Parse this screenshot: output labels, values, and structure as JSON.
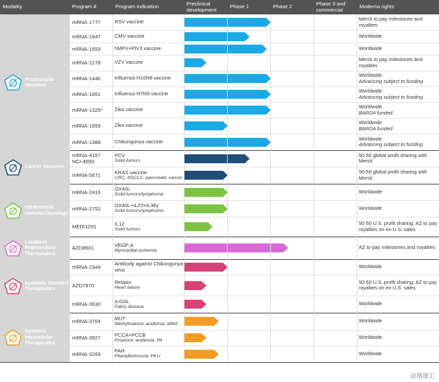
{
  "headers": {
    "modality": "Modality",
    "program": "Program #",
    "indication": "Program indication",
    "preclinical": "Preclinical development",
    "phase1": "Phase 1",
    "phase2": "Phase 2",
    "phase3": "Phase 3 and commercial",
    "rights": "Moderna rights"
  },
  "colors": {
    "header_bg": "#545454",
    "modality_bg": "#d6d6d6",
    "prophylactic": "#1ba9e4",
    "cancer": "#1f4e79",
    "intratumoral": "#7dc242",
    "regenerative": "#d86ad8",
    "secreted": "#d64377",
    "intracellular": "#f29d21"
  },
  "groups": [
    {
      "key": "prophylactic",
      "name": "Prophylactic Vaccines",
      "icon": "prophylactic-vaccine-icon",
      "rows": [
        {
          "program": "mRNA-1777",
          "indication": "RSV vaccine",
          "sub": "",
          "stage": 2.0,
          "rights": "Merck to pay milestones and royalties",
          "rights_sub": ""
        },
        {
          "program": "mRNA-1647",
          "indication": "CMV vaccine",
          "sub": "",
          "stage": 1.5,
          "rights": "Worldwide",
          "rights_sub": ""
        },
        {
          "program": "mRNA-1653",
          "indication": "hMPV+PIV3 vaccine",
          "sub": "",
          "stage": 1.9,
          "rights": "Worldwide",
          "rights_sub": ""
        },
        {
          "program": "mRNA-1278",
          "indication": "VZV vaccine",
          "sub": "",
          "stage": 0.5,
          "rights": "Merck to pay milestones and royalties",
          "rights_sub": ""
        },
        {
          "program": "mRNA-1440",
          "indication": "Influenza H10N8 vaccine",
          "sub": "",
          "stage": 2.0,
          "rights": "Worldwide",
          "rights_sub": "Advancing subject to funding"
        },
        {
          "program": "mRNA-1851",
          "indication": "Influenza H7N9 vaccine",
          "sub": "",
          "stage": 2.0,
          "rights": "Worldwide",
          "rights_sub": "Advancing subject to funding"
        },
        {
          "program": "mRNA-1325*",
          "indication": "Zika vaccine",
          "sub": "",
          "stage": 2.0,
          "rights": "Worldwide",
          "rights_sub": "BARDA funded"
        },
        {
          "program": "mRNA-1893",
          "indication": "Zika vaccine",
          "sub": "",
          "stage": 1.0,
          "rights": "Worldwide",
          "rights_sub": "BARDA funded"
        },
        {
          "program": "mRNA-1388",
          "indication": "Chikungunya vaccine",
          "sub": "",
          "stage": 2.0,
          "rights": "Worldwide",
          "rights_sub": "Advancing subject to funding"
        }
      ]
    },
    {
      "key": "cancer",
      "name": "Cancer Vaccines",
      "icon": "cancer-vaccine-icon",
      "rows": [
        {
          "program": "mRNA-4157\nNCI-4650",
          "indication": "PCV",
          "sub": "Solid tumors",
          "stage": 1.5,
          "rights": "50-50 global profit sharing with Merck",
          "rights_sub": ""
        },
        {
          "program": "mRNA-5671",
          "indication": "KRAS vaccine",
          "sub": "CRC, NSCLC, pancreatic cancer",
          "stage": 1.0,
          "rights": "50-50 global profit sharing with Merck",
          "rights_sub": ""
        }
      ]
    },
    {
      "key": "intratumoral",
      "name": "Intratumoral Immuno-Oncology",
      "icon": "intratumoral-icon",
      "rows": [
        {
          "program": "mRNA-2416",
          "indication": "OX40L",
          "sub": "Solid tumors/lymphoma",
          "stage": 1.0,
          "rights": "Worldwide",
          "rights_sub": ""
        },
        {
          "program": "mRNA-2752",
          "indication": "OX40L+IL23+IL36γ",
          "sub": "Solid tumors/lymphoma",
          "stage": 1.0,
          "rights": "Worldwide",
          "rights_sub": ""
        },
        {
          "program": "MEDI1191",
          "indication": "IL12",
          "sub": "Solid tumors",
          "stage": 0.65,
          "rights": "50-50 U.S. profit sharing; AZ to pay royalties on ex-U.S. sales",
          "rights_sub": ""
        }
      ]
    },
    {
      "key": "regenerative",
      "name": "Localized Regenerative Therapeutics",
      "icon": "regenerative-icon",
      "rows": [
        {
          "program": "AZD8601",
          "indication": "VEGF-A",
          "sub": "Myocardial ischemia",
          "stage": 2.4,
          "rights": "AZ to pay milestones and royalties",
          "rights_sub": ""
        }
      ]
    },
    {
      "key": "secreted",
      "name": "Systemic Secreted Therapeutics",
      "icon": "secreted-icon",
      "rows": [
        {
          "program": "mRNA-1944",
          "indication": "Antibody against Chikungunya virus",
          "sub": "",
          "stage": 1.0,
          "rights": "Worldwide",
          "rights_sub": ""
        },
        {
          "program": "AZD7970",
          "indication": "Relaxin",
          "sub": "Heart failure",
          "stage": 0.5,
          "rights": "50-50 U.S. profit sharing; AZ to pay royalties on ex-U.S. sales",
          "rights_sub": ""
        },
        {
          "program": "mRNA-3630",
          "indication": "α-GAL",
          "sub": "Fabry disease",
          "stage": 0.5,
          "rights": "Worldwide",
          "rights_sub": ""
        }
      ]
    },
    {
      "key": "intracellular",
      "name": "Systemic Intracellular Therapeutics",
      "icon": "intracellular-icon",
      "rows": [
        {
          "program": "mRNA-3704",
          "indication": "MUT",
          "sub": "Methylmalonic acidemia, MMA",
          "stage": 0.8,
          "rights": "Worldwide",
          "rights_sub": ""
        },
        {
          "program": "mRNA-3927",
          "indication": "PCCA+PCCB",
          "sub": "Propionic acidemia, PA",
          "stage": 0.5,
          "rights": "Worldwide",
          "rights_sub": ""
        },
        {
          "program": "mRNA-3283",
          "indication": "PAH",
          "sub": "Phenylketonuria, PKU",
          "stage": 0.8,
          "rights": "Worldwide",
          "rights_sub": ""
        }
      ]
    }
  ],
  "watermark": "@格隆汇"
}
